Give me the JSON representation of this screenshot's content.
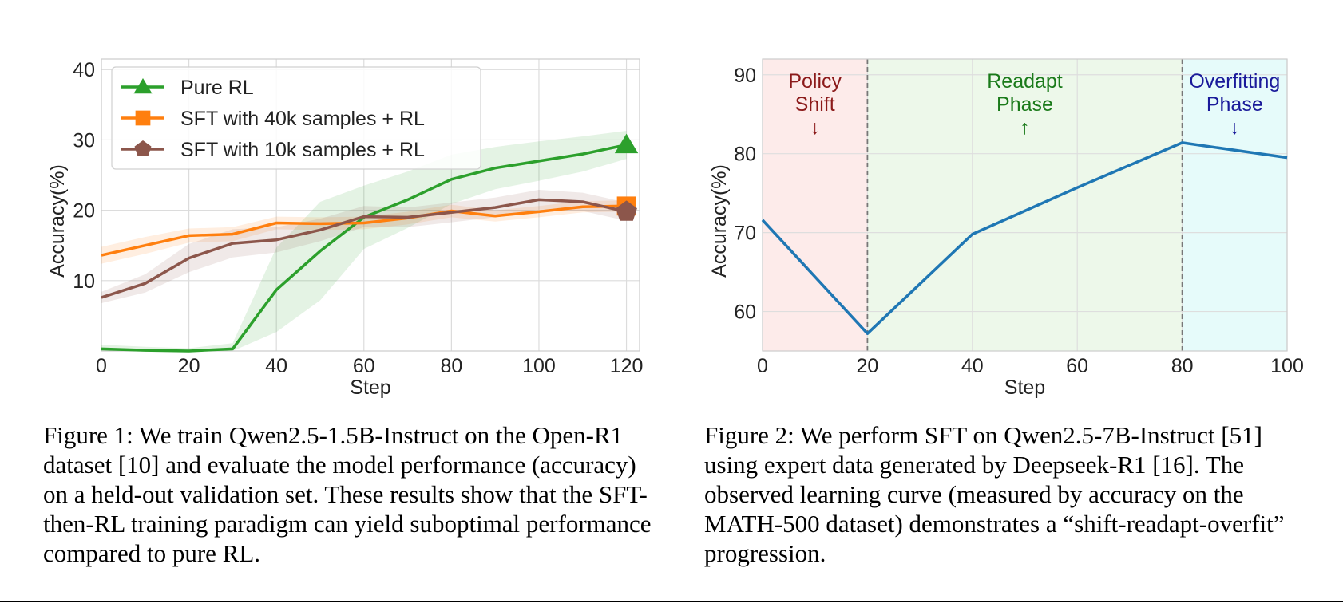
{
  "chart_data": [
    {
      "type": "line",
      "xlabel": "Step",
      "ylabel": "Accuracy(%)",
      "xlim": [
        0,
        123
      ],
      "ylim": [
        0,
        41.5
      ],
      "xticks": [
        0,
        20,
        40,
        60,
        80,
        100,
        120
      ],
      "yticks": [
        10,
        20,
        30,
        40
      ],
      "grid": true,
      "legend_position": "top-left",
      "series": [
        {
          "name": "Pure RL",
          "color": "#2ca02c",
          "marker": "triangle",
          "x": [
            0,
            10,
            20,
            30,
            40,
            50,
            60,
            70,
            80,
            90,
            100,
            110,
            120
          ],
          "values": [
            0.3,
            0.1,
            0.0,
            0.3,
            8.7,
            14.2,
            19.0,
            21.5,
            24.4,
            26.0,
            27.0,
            28.0,
            29.3
          ],
          "band": [
            0.6,
            0.5,
            0.4,
            0.8,
            6.0,
            7.0,
            4.5,
            4.0,
            3.5,
            3.0,
            2.8,
            2.5,
            2.0
          ]
        },
        {
          "name": "SFT with 40k samples + RL",
          "color": "#ff7f0e",
          "marker": "square",
          "x": [
            0,
            10,
            20,
            30,
            40,
            50,
            60,
            70,
            80,
            90,
            100,
            110,
            120
          ],
          "values": [
            13.6,
            15.0,
            16.4,
            16.6,
            18.2,
            18.1,
            18.2,
            18.9,
            19.9,
            19.2,
            19.8,
            20.5,
            20.6
          ],
          "band": [
            1.2,
            1.2,
            1.0,
            1.0,
            0.9,
            0.9,
            0.9,
            0.9,
            0.9,
            0.8,
            0.8,
            0.8,
            0.8
          ]
        },
        {
          "name": "SFT with 10k samples + RL",
          "color": "#8c564b",
          "marker": "pentagon",
          "x": [
            0,
            10,
            20,
            30,
            40,
            50,
            60,
            70,
            80,
            90,
            100,
            110,
            120
          ],
          "values": [
            7.6,
            9.6,
            13.2,
            15.3,
            15.8,
            17.2,
            19.1,
            19.0,
            19.7,
            20.4,
            21.5,
            21.2,
            19.8
          ],
          "band": [
            0.8,
            1.3,
            2.0,
            2.0,
            1.8,
            1.6,
            1.5,
            1.4,
            1.4,
            1.4,
            1.4,
            1.3,
            1.3
          ]
        }
      ]
    },
    {
      "type": "line",
      "xlabel": "Step",
      "ylabel": "Accuracy(%)",
      "xlim": [
        0,
        100
      ],
      "ylim": [
        55,
        92
      ],
      "xticks": [
        0,
        20,
        40,
        60,
        80,
        100
      ],
      "yticks": [
        60,
        70,
        80,
        90
      ],
      "grid": true,
      "series": [
        {
          "name": "Accuracy",
          "color": "#1f77b4",
          "x": [
            0,
            20,
            40,
            60,
            80,
            100
          ],
          "values": [
            71.6,
            57.2,
            69.8,
            75.7,
            81.4,
            79.5
          ]
        }
      ],
      "phases": [
        {
          "name": "policy-shift",
          "start": 0,
          "end": 20,
          "fill": "#fdebea",
          "color": "#8b1a1a",
          "lines": [
            "Policy",
            "Shift",
            "↓"
          ]
        },
        {
          "name": "readapt",
          "start": 20,
          "end": 80,
          "fill": "#edf8ea",
          "color": "#1a7a1a",
          "lines": [
            "Readapt",
            "Phase",
            "↑"
          ]
        },
        {
          "name": "overfitting",
          "start": 80,
          "end": 100,
          "fill": "#e6fbfa",
          "color": "#1a1a9a",
          "lines": [
            "Overfitting",
            "Phase",
            "↓"
          ]
        }
      ],
      "vlines": [
        20,
        80
      ]
    }
  ],
  "captions": {
    "fig1": "Figure 1: We train Qwen2.5-1.5B-Instruct on the Open-R1 dataset [10] and evaluate the model performance (accuracy) on a held-out validation set. These results show that the SFT-then-RL training paradigm can yield suboptimal performance compared to pure RL.",
    "fig2": "Figure 2: We perform SFT on Qwen2.5-7B-Instruct [51] using expert data generated by Deepseek-R1 [16]. The observed learning curve (measured by accuracy on the MATH-500 dataset) demonstrates a “shift-readapt-overfit” progression."
  }
}
